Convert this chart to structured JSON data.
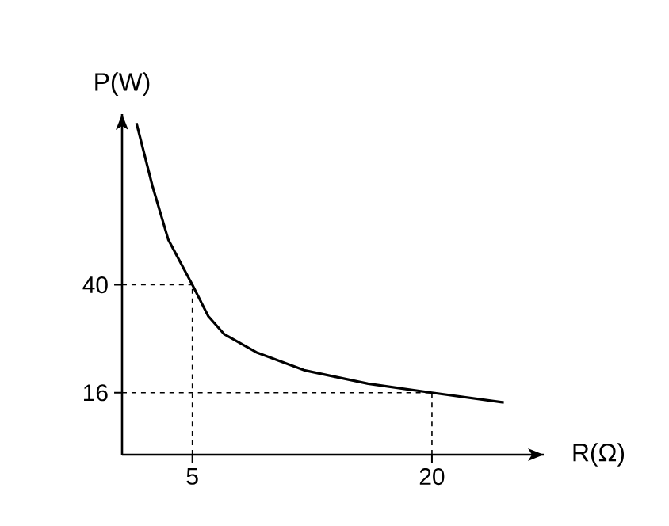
{
  "chart_data": {
    "type": "line",
    "xlabel": "R(Ω)",
    "ylabel": "P(W)",
    "x": [
      1.5,
      2.5,
      3.5,
      5,
      6,
      7,
      9,
      12,
      16,
      20,
      24.5
    ],
    "series": [
      {
        "color": "#000000",
        "values": [
          76,
          62,
          50,
          40,
          33,
          29,
          25,
          21,
          18,
          16,
          13.8
        ]
      }
    ],
    "xlim": [
      0.6,
      27
    ],
    "ylim": [
      2.2,
      78
    ],
    "xticks": [
      5,
      20
    ],
    "yticks": [
      16,
      40
    ],
    "ref_lines": [
      {
        "axis": "x",
        "value": 5,
        "line_style": "dashed"
      },
      {
        "axis": "y",
        "value": 40,
        "line_style": "dashed"
      },
      {
        "axis": "x",
        "value": 20,
        "line_style": "dashed"
      },
      {
        "axis": "y",
        "value": 16,
        "line_style": "dashed"
      }
    ],
    "grid": false,
    "marker": "none",
    "line_style": "solid"
  }
}
